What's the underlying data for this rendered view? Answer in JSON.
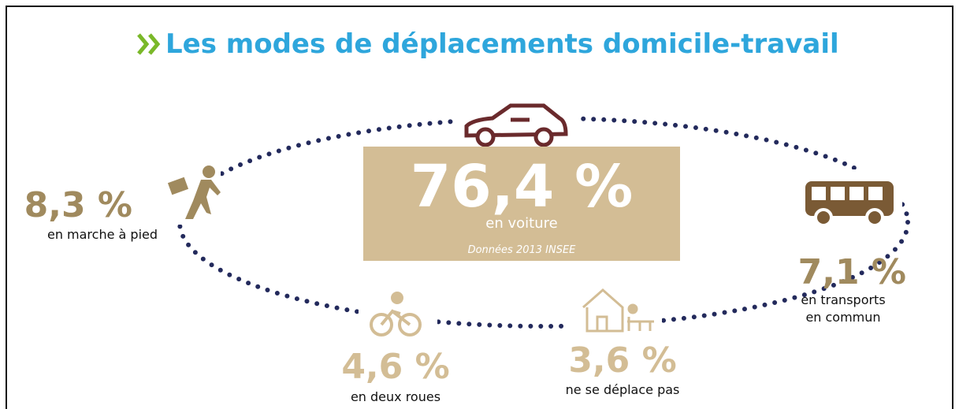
{
  "title": "Les modes de déplacements domicile-travail",
  "modes": [
    {
      "value": "76,4 %",
      "label_lines": [
        "en voiture"
      ]
    },
    {
      "value": "8,3 %",
      "label_lines": [
        "en marche à pied"
      ]
    },
    {
      "value": "7,1 %",
      "label_lines": [
        "en transports",
        "en commun"
      ]
    },
    {
      "value": "4,6 %",
      "label_lines": [
        "en deux roues"
      ]
    },
    {
      "value": "3,6 %",
      "label_lines": [
        "ne se déplace pas"
      ]
    }
  ],
  "source": "Données 2013 INSEE"
}
